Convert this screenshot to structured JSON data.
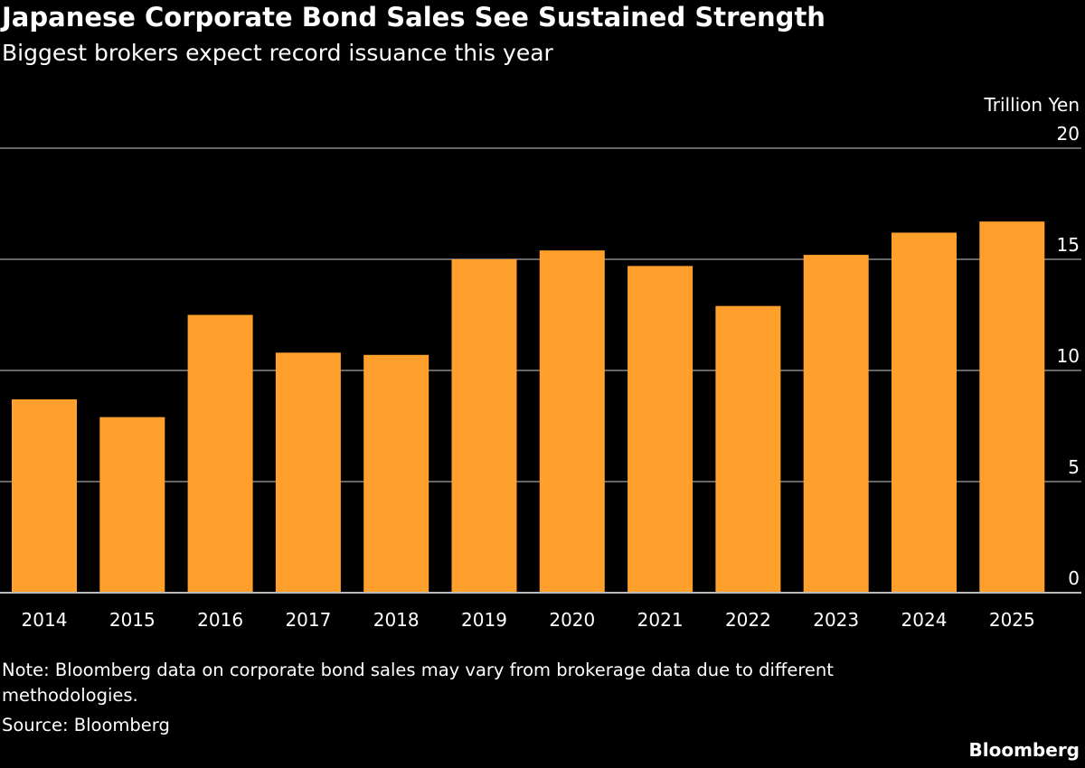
{
  "chart_data": {
    "type": "bar",
    "title": "Japanese Corporate Bond Sales See Sustained Strength",
    "subtitle": "Biggest brokers expect record issuance this year",
    "ylabel": "Trillion Yen",
    "ylim": [
      0,
      20
    ],
    "yticks": [
      0,
      5,
      10,
      15,
      20
    ],
    "grid": true,
    "categories": [
      "2014",
      "2015",
      "2016",
      "2017",
      "2018",
      "2019",
      "2020",
      "2021",
      "2022",
      "2023",
      "2024",
      "2025"
    ],
    "values": [
      8.7,
      7.9,
      12.5,
      10.8,
      10.7,
      15.0,
      15.4,
      14.7,
      12.9,
      15.2,
      16.2,
      16.7
    ],
    "bar_color": "#ffa02c",
    "note_line1": "Note: Bloomberg data on corporate bond sales may vary from brokerage data due to different",
    "note_line2": "methodologies.",
    "source": "Source: Bloomberg"
  },
  "logo": "Bloomberg"
}
